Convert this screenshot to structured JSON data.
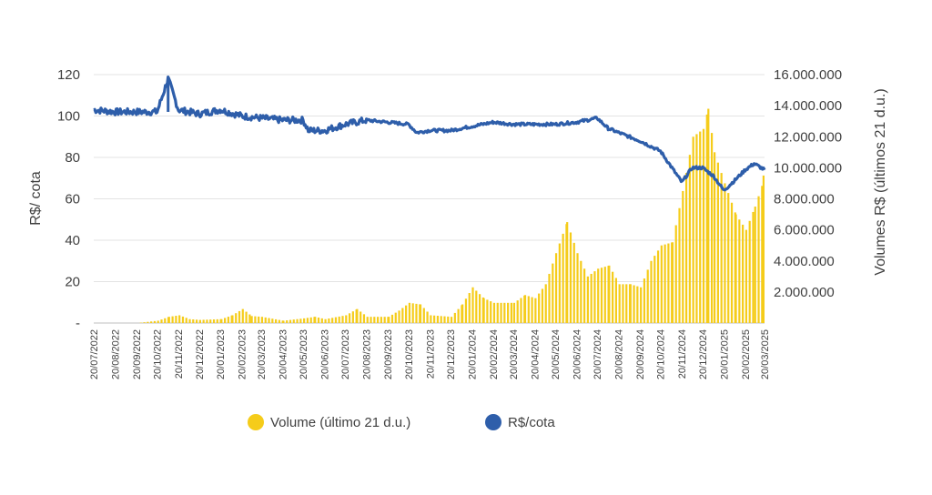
{
  "chart_data": {
    "type": "bar+line",
    "title": "",
    "y_left": {
      "label": "R$/ cota",
      "ticks": [
        "-",
        "20",
        "40",
        "60",
        "80",
        "100",
        "120"
      ],
      "range": [
        0,
        120
      ]
    },
    "y_right": {
      "label": "Volumes R$ (últimos 21 d.u.)",
      "ticks": [
        "2.000.000",
        "4.000.000",
        "6.000.000",
        "8.000.000",
        "10.000.000",
        "12.000.000",
        "14.000.000",
        "16.000.000"
      ],
      "range": [
        0,
        16000000
      ]
    },
    "x_ticks": [
      "20/07/2022",
      "20/08/2022",
      "20/09/2022",
      "20/10/2022",
      "20/11/2022",
      "20/12/2022",
      "20/01/2023",
      "20/02/2023",
      "20/03/2023",
      "20/04/2023",
      "20/05/2023",
      "20/06/2023",
      "20/07/2023",
      "20/08/2023",
      "20/09/2023",
      "20/10/2023",
      "20/11/2023",
      "20/12/2023",
      "20/01/2024",
      "20/02/2024",
      "20/03/2024",
      "20/04/2024",
      "20/05/2024",
      "20/06/2024",
      "20/07/2024",
      "20/08/2024",
      "20/09/2024",
      "20/10/2024",
      "20/11/2024",
      "20/12/2024",
      "20/01/2025",
      "20/02/2025",
      "20/03/2025"
    ],
    "grid": "horizontal",
    "legend_position": "bottom",
    "colors": {
      "volume": "#F5CC1A",
      "price": "#2E5EAA"
    },
    "series": [
      {
        "name": "Volume (último 21 d.u.)",
        "axis": "right",
        "type": "bar",
        "x": [
          "20/07/2022",
          "20/08/2022",
          "20/09/2022",
          "20/10/2022",
          "05/11/2022",
          "20/11/2022",
          "05/12/2022",
          "20/12/2022",
          "20/01/2023",
          "05/02/2023",
          "20/02/2023",
          "05/03/2023",
          "20/03/2023",
          "20/04/2023",
          "20/05/2023",
          "05/06/2023",
          "20/06/2023",
          "20/07/2023",
          "05/08/2023",
          "20/08/2023",
          "20/09/2023",
          "05/10/2023",
          "20/10/2023",
          "05/11/2023",
          "20/11/2023",
          "20/12/2023",
          "05/01/2024",
          "20/01/2024",
          "05/02/2024",
          "20/02/2024",
          "20/03/2024",
          "05/04/2024",
          "20/04/2024",
          "05/05/2024",
          "20/05/2024",
          "05/06/2024",
          "20/06/2024",
          "05/07/2024",
          "20/07/2024",
          "05/08/2024",
          "20/08/2024",
          "05/09/2024",
          "20/09/2024",
          "05/10/2024",
          "20/10/2024",
          "05/11/2024",
          "20/11/2024",
          "05/12/2024",
          "20/12/2024",
          "27/12/2024",
          "05/01/2025",
          "20/01/2025",
          "05/02/2025",
          "20/02/2025",
          "05/03/2025",
          "20/03/2025"
        ],
        "values": [
          0,
          0,
          0,
          150000,
          400000,
          500000,
          250000,
          200000,
          250000,
          500000,
          900000,
          450000,
          400000,
          150000,
          300000,
          400000,
          250000,
          500000,
          900000,
          400000,
          400000,
          800000,
          1300000,
          1200000,
          500000,
          400000,
          1200000,
          2300000,
          1600000,
          1300000,
          1300000,
          1800000,
          1600000,
          2500000,
          4500000,
          6500000,
          4500000,
          3000000,
          3500000,
          3700000,
          2500000,
          2500000,
          2300000,
          4000000,
          5000000,
          5200000,
          8500000,
          12000000,
          12500000,
          13800000,
          11000000,
          9000000,
          7000000,
          6000000,
          7500000,
          9500000
        ]
      },
      {
        "name": "R$/cota",
        "axis": "left",
        "type": "line",
        "x": [
          "20/07/2022",
          "20/08/2022",
          "20/09/2022",
          "20/10/2022",
          "05/11/2022",
          "20/11/2022",
          "20/12/2022",
          "20/01/2023",
          "20/02/2023",
          "20/03/2023",
          "20/04/2023",
          "20/05/2023",
          "28/05/2023",
          "20/06/2023",
          "20/07/2023",
          "20/08/2023",
          "20/09/2023",
          "20/10/2023",
          "01/11/2023",
          "20/11/2023",
          "20/12/2023",
          "20/01/2024",
          "20/02/2024",
          "20/03/2024",
          "20/04/2024",
          "20/05/2024",
          "20/06/2024",
          "20/07/2024",
          "05/08/2024",
          "20/08/2024",
          "20/09/2024",
          "20/10/2024",
          "20/11/2024",
          "05/12/2024",
          "20/12/2024",
          "05/01/2025",
          "20/01/2025",
          "05/02/2025",
          "20/02/2025",
          "05/03/2025",
          "20/03/2025"
        ],
        "values": [
          103,
          102,
          102,
          102,
          118,
          103,
          101,
          103,
          100,
          99,
          98,
          98,
          93,
          93,
          96,
          98,
          97,
          96,
          92,
          93,
          93,
          95,
          97,
          96,
          96,
          96,
          97,
          99,
          94,
          92,
          88,
          83,
          68,
          75,
          75,
          71,
          64,
          69,
          74,
          77,
          74
        ]
      }
    ]
  },
  "legend": {
    "volume_label": "Volume (último 21 d.u.)",
    "price_label": "R$/cota"
  }
}
